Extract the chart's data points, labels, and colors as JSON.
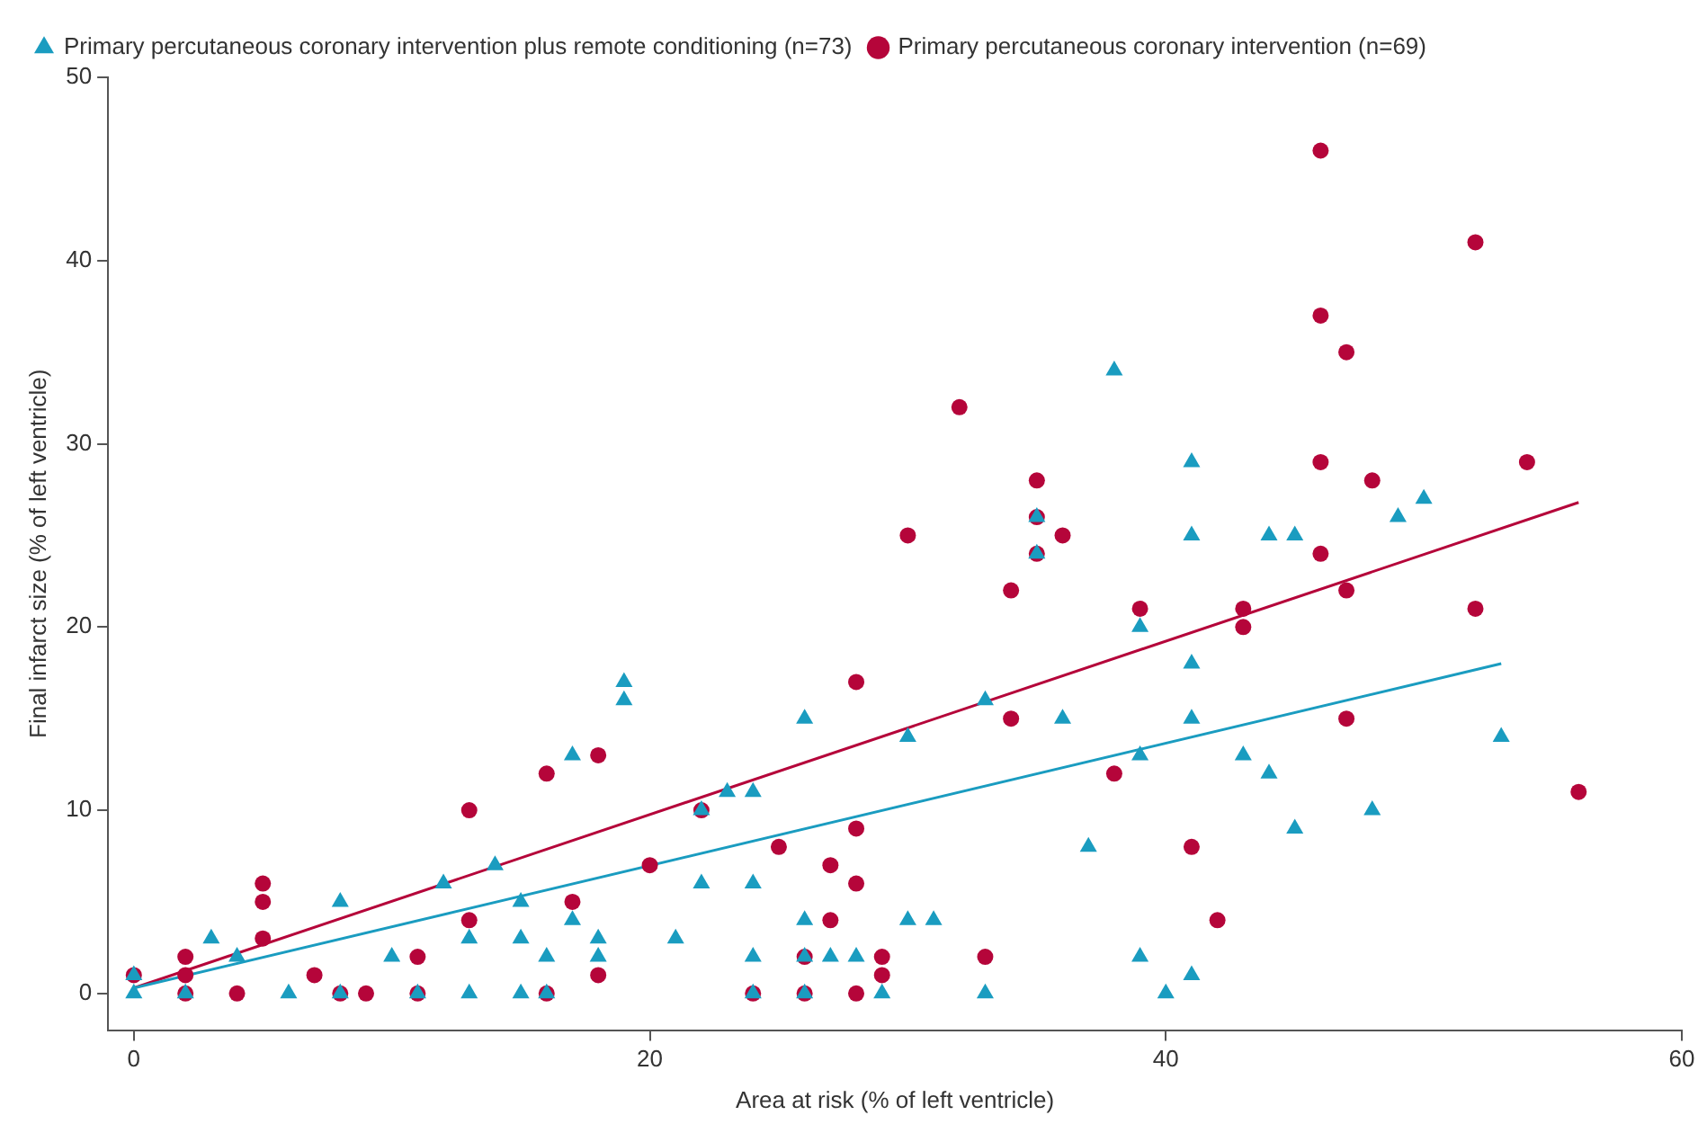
{
  "chart_data": {
    "type": "scatter",
    "xlabel": "Area at risk (% of left ventricle)",
    "ylabel": "Final infarct size (% of left ventricle)",
    "xlim": [
      -1,
      60
    ],
    "xticks": [
      0,
      20,
      40,
      60
    ],
    "ylim": [
      -2,
      50
    ],
    "yticks": [
      0,
      10,
      20,
      30,
      40,
      50
    ],
    "grid": false,
    "legend": "top left",
    "series": [
      {
        "name": "Primary percutaneous coronary intervention plus remote conditioning (n=73)",
        "color": "#1a9cc0",
        "marker": "triangle",
        "x": [
          0,
          0,
          2,
          3,
          4,
          6,
          8,
          8,
          10,
          11,
          12,
          13,
          13,
          14,
          15,
          15,
          15,
          16,
          16,
          17,
          17,
          18,
          18,
          19,
          19,
          21,
          22,
          22,
          23,
          24,
          24,
          24,
          24,
          26,
          26,
          26,
          26,
          27,
          28,
          29,
          30,
          30,
          31,
          33,
          33,
          35,
          35,
          36,
          37,
          38,
          39,
          39,
          39,
          40,
          41,
          41,
          41,
          41,
          41,
          43,
          44,
          44,
          45,
          45,
          48,
          49,
          50,
          53
        ],
        "values": [
          1,
          0,
          0,
          3,
          2,
          0,
          5,
          0,
          2,
          0,
          6,
          3,
          0,
          7,
          5,
          3,
          0,
          2,
          0,
          13,
          4,
          3,
          2,
          17,
          16,
          3,
          10,
          6,
          11,
          11,
          6,
          2,
          0,
          15,
          4,
          2,
          0,
          2,
          2,
          0,
          14,
          4,
          4,
          16,
          0,
          26,
          24,
          15,
          8,
          34,
          20,
          13,
          2,
          0,
          29,
          25,
          18,
          15,
          1,
          13,
          25,
          12,
          25,
          9,
          10,
          26,
          27,
          14
        ]
      },
      {
        "name": "Primary percutaneous coronary intervention (n=69)",
        "color": "#b5053a",
        "marker": "circle",
        "x": [
          0,
          2,
          2,
          2,
          4,
          5,
          5,
          5,
          7,
          8,
          9,
          11,
          11,
          13,
          13,
          16,
          16,
          17,
          18,
          18,
          20,
          22,
          24,
          25,
          26,
          26,
          27,
          27,
          28,
          28,
          28,
          28,
          29,
          29,
          30,
          32,
          33,
          34,
          34,
          35,
          35,
          35,
          36,
          38,
          39,
          41,
          42,
          43,
          43,
          46,
          46,
          46,
          46,
          47,
          47,
          47,
          48,
          52,
          52,
          54,
          56
        ],
        "values": [
          1,
          2,
          1,
          0,
          0,
          6,
          5,
          3,
          1,
          0,
          0,
          2,
          0,
          10,
          4,
          12,
          0,
          5,
          13,
          1,
          7,
          10,
          0,
          8,
          2,
          0,
          7,
          4,
          17,
          9,
          6,
          0,
          2,
          1,
          25,
          32,
          2,
          22,
          15,
          28,
          26,
          24,
          25,
          12,
          21,
          8,
          4,
          21,
          20,
          46,
          37,
          29,
          24,
          35,
          22,
          15,
          28,
          41,
          21,
          29,
          11
        ]
      },
      {
        "type": "line",
        "color": "#1a9cc0",
        "marker": "none",
        "x": [
          0,
          53
        ],
        "values": [
          0.3,
          18
        ]
      },
      {
        "type": "line",
        "color": "#b5053a",
        "marker": "none",
        "x": [
          0,
          56
        ],
        "values": [
          0.3,
          26.8
        ]
      }
    ]
  }
}
